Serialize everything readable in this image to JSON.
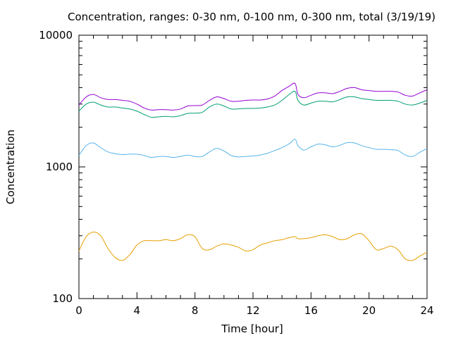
{
  "chart_data": {
    "type": "line",
    "title": "Concentration, ranges: 0-30 nm, 0-100 nm, 0-300 nm, total (3/19/19)",
    "xlabel": "Time [hour]",
    "ylabel": "Concentration",
    "xlim": [
      0,
      24
    ],
    "ylim": [
      100,
      10000
    ],
    "yscale": "log",
    "xticks": [
      "0",
      "4",
      "8",
      "12",
      "16",
      "20",
      "24"
    ],
    "yticks": [
      "100",
      "1000",
      "10000"
    ],
    "grid": false,
    "legend": "none",
    "x": [
      0,
      0.5,
      1,
      1.5,
      2,
      2.5,
      3,
      3.5,
      4,
      4.5,
      5,
      5.5,
      6,
      6.5,
      7,
      7.5,
      8,
      8.5,
      9,
      9.5,
      10,
      10.5,
      11,
      11.5,
      12,
      12.5,
      13,
      13.5,
      14,
      14.5,
      14.9,
      15.1,
      15.5,
      16,
      16.5,
      17,
      17.5,
      18,
      18.5,
      19,
      19.5,
      20,
      20.5,
      21,
      21.5,
      22,
      22.5,
      23,
      23.5,
      24
    ],
    "series": [
      {
        "color": "#e69f00",
        "values": [
          230,
          295,
          320,
          300,
          240,
          205,
          195,
          215,
          255,
          275,
          275,
          275,
          280,
          275,
          285,
          305,
          295,
          240,
          235,
          250,
          260,
          255,
          245,
          230,
          235,
          255,
          265,
          275,
          280,
          290,
          295,
          285,
          285,
          290,
          300,
          305,
          295,
          280,
          285,
          305,
          310,
          275,
          235,
          240,
          250,
          235,
          200,
          195,
          210,
          225
        ]
      },
      {
        "color": "#56b4e9",
        "values": [
          1220,
          1450,
          1520,
          1400,
          1300,
          1260,
          1240,
          1250,
          1250,
          1220,
          1180,
          1200,
          1200,
          1180,
          1200,
          1230,
          1200,
          1200,
          1300,
          1380,
          1320,
          1220,
          1190,
          1200,
          1210,
          1230,
          1270,
          1330,
          1400,
          1500,
          1620,
          1450,
          1340,
          1420,
          1490,
          1470,
          1420,
          1460,
          1530,
          1520,
          1450,
          1400,
          1360,
          1360,
          1350,
          1330,
          1230,
          1200,
          1290,
          1380
        ]
      },
      {
        "color": "#009e73",
        "values": [
          2650,
          3000,
          3100,
          2950,
          2850,
          2850,
          2800,
          2750,
          2650,
          2500,
          2380,
          2400,
          2420,
          2400,
          2450,
          2550,
          2560,
          2600,
          2850,
          3000,
          2900,
          2750,
          2760,
          2780,
          2780,
          2800,
          2850,
          2950,
          3200,
          3550,
          3750,
          3200,
          2950,
          3050,
          3150,
          3150,
          3120,
          3250,
          3400,
          3400,
          3300,
          3250,
          3200,
          3200,
          3200,
          3150,
          3000,
          2950,
          3050,
          3200
        ]
      },
      {
        "color": "#9400d3",
        "values": [
          2950,
          3400,
          3550,
          3350,
          3250,
          3250,
          3200,
          3150,
          3000,
          2800,
          2700,
          2720,
          2720,
          2700,
          2750,
          2900,
          2920,
          2950,
          3200,
          3400,
          3300,
          3150,
          3150,
          3200,
          3220,
          3220,
          3280,
          3450,
          3800,
          4100,
          4300,
          3550,
          3350,
          3500,
          3650,
          3650,
          3600,
          3750,
          3950,
          4000,
          3850,
          3800,
          3750,
          3750,
          3750,
          3700,
          3500,
          3450,
          3650,
          3850
        ]
      }
    ]
  }
}
